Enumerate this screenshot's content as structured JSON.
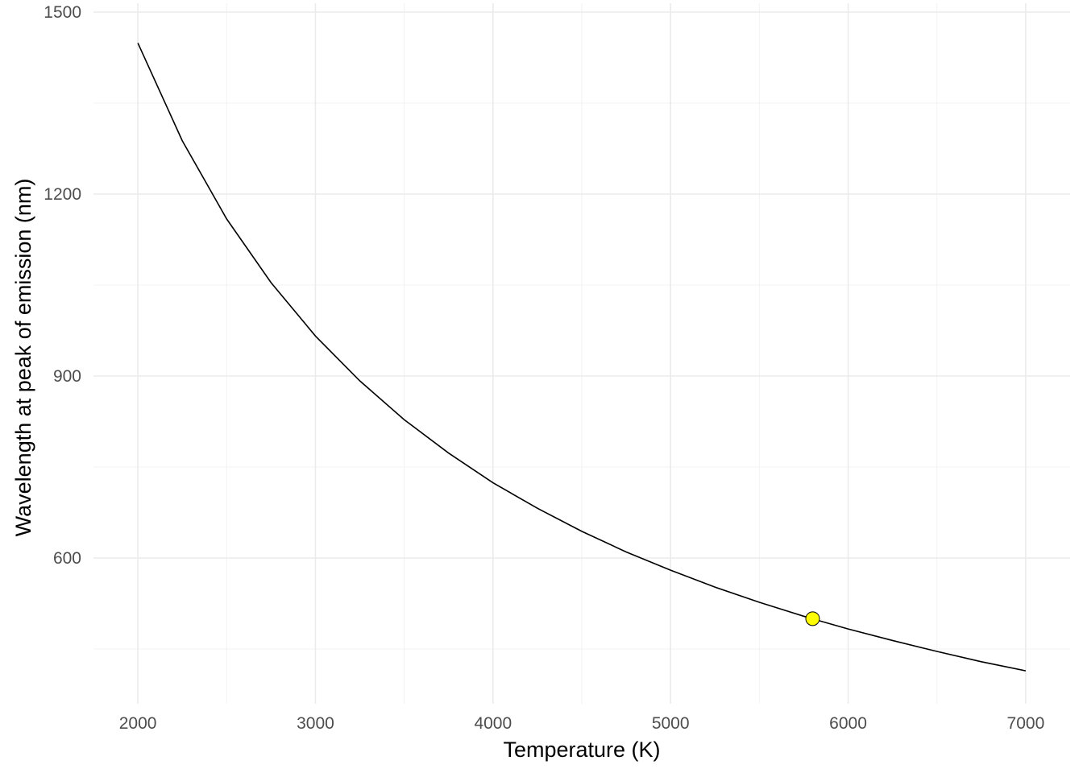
{
  "chart_data": {
    "type": "line",
    "title": "",
    "xlabel": "Temperature (K)",
    "ylabel": "Wavelength at peak of emission (nm)",
    "xlim": [
      1750,
      7250
    ],
    "ylim": [
      372,
      1500
    ],
    "x_ticks": [
      2000,
      3000,
      4000,
      5000,
      6000,
      7000
    ],
    "x_tick_labels": [
      "2000",
      "3000",
      "4000",
      "5000",
      "6000",
      "7000"
    ],
    "y_ticks": [
      600,
      900,
      1200,
      1500
    ],
    "y_tick_labels": [
      "600",
      "900",
      "1200",
      "1500"
    ],
    "x_minor_ticks": [
      2500,
      3500,
      4500,
      5500,
      6500
    ],
    "y_minor_ticks": [
      450,
      750,
      1050,
      1350
    ],
    "grid": true,
    "legend": "none",
    "series": [
      {
        "x": [
          2000,
          2250,
          2500,
          2750,
          3000,
          3250,
          3500,
          3750,
          4000,
          4250,
          4500,
          4750,
          5000,
          5250,
          5500,
          5750,
          6000,
          6250,
          6500,
          6750,
          7000
        ],
        "y": [
          1449,
          1288,
          1159,
          1054,
          966,
          892,
          828,
          773,
          724,
          682,
          644,
          610,
          580,
          552,
          527,
          504,
          483,
          464,
          446,
          429,
          414
        ],
        "color": "#000000"
      }
    ],
    "points": [
      {
        "x": 5800,
        "y": 500,
        "fill": "#ffff00",
        "stroke": "#000000"
      }
    ]
  }
}
